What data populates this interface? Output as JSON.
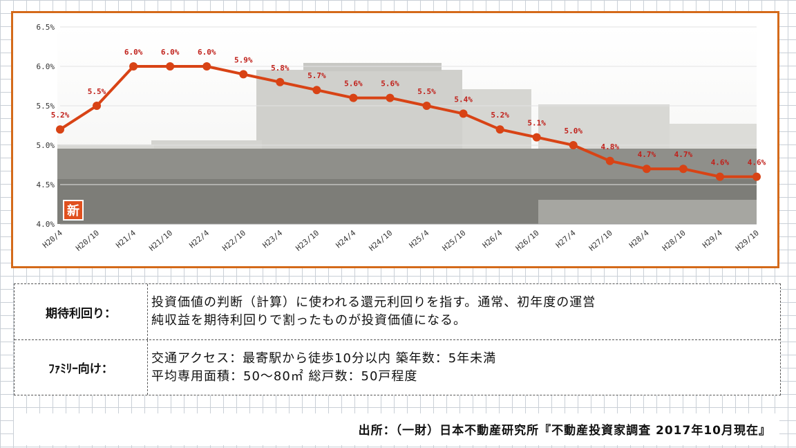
{
  "chart_data": {
    "type": "line",
    "categories": [
      "H20/4",
      "H20/10",
      "H21/4",
      "H21/10",
      "H22/4",
      "H22/10",
      "H23/4",
      "H23/10",
      "H24/4",
      "H24/10",
      "H25/4",
      "H25/10",
      "H26/4",
      "H26/10",
      "H27/4",
      "H27/10",
      "H28/4",
      "H28/10",
      "H29/4",
      "H29/10"
    ],
    "values": [
      5.2,
      5.5,
      6.0,
      6.0,
      6.0,
      5.9,
      5.8,
      5.7,
      5.6,
      5.6,
      5.5,
      5.4,
      5.2,
      5.1,
      5.0,
      4.8,
      4.7,
      4.7,
      4.6,
      4.6
    ],
    "value_labels": [
      "5.2%",
      "5.5%",
      "6.0%",
      "6.0%",
      "6.0%",
      "5.9%",
      "5.8%",
      "5.7%",
      "5.6%",
      "5.6%",
      "5.5%",
      "5.4%",
      "5.2%",
      "5.1%",
      "5.0%",
      "4.8%",
      "4.7%",
      "4.7%",
      "4.6%",
      "4.6%"
    ],
    "ylim": [
      4.0,
      6.5
    ],
    "yticks": [
      "4.0%",
      "4.5%",
      "5.0%",
      "5.5%",
      "6.0%",
      "6.5%"
    ],
    "series_color": "#d84315",
    "label_color": "#c0201a",
    "grid": true,
    "background_photo": true,
    "badge_text": "新"
  },
  "definitions": [
    {
      "term": "期待利回り：",
      "lines": [
        "投資価値の判断（計算）に使われる還元利回りを指す。通常、初年度の運営",
        "純収益を期待利回りで割ったものが投資価値になる。"
      ]
    },
    {
      "term": "ﾌｧﾐﾘｰ向け：",
      "lines": [
        "交通アクセス：最寄駅から徒歩10分以内 築年数：5年未満",
        "平均専用面積：50～80㎡ 総戸数：50戸程度"
      ]
    }
  ],
  "source": "出所：（一財）日本不動産研究所『不動産投資家調査 2017年10月現在』",
  "colors": {
    "frame": "#d46a1a",
    "line": "#d84315"
  }
}
